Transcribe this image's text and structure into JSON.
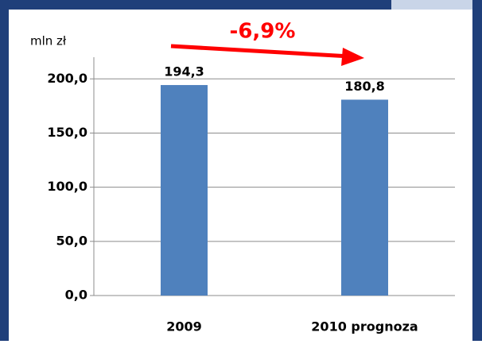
{
  "chart_data": {
    "type": "bar",
    "y_axis_label": "mln zł",
    "annotation": "-6,9%",
    "categories": [
      "2009",
      "2010 prognoza"
    ],
    "values": [
      194.3,
      180.8
    ],
    "value_labels": [
      "194,3",
      "180,8"
    ],
    "color": "#4f81bd",
    "ylim": [
      0,
      220
    ],
    "yticks": [
      {
        "value": 0,
        "label": "0,0"
      },
      {
        "value": 50,
        "label": "50,0"
      },
      {
        "value": 100,
        "label": "100,0"
      },
      {
        "value": 150,
        "label": "150,0"
      },
      {
        "value": 200,
        "label": "200,0"
      }
    ],
    "grid": true
  }
}
